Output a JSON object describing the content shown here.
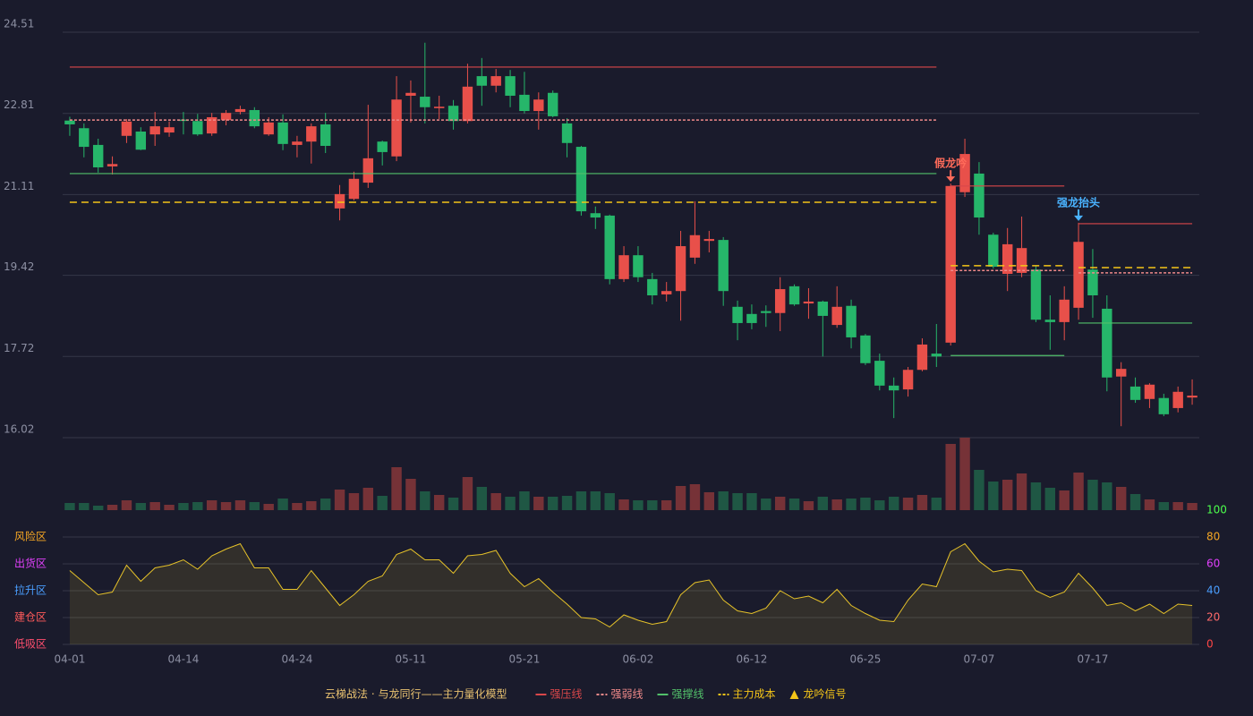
{
  "chart_data": {
    "type": "candlestick",
    "title": "云梯战法 · 与龙同行——主力量化模型",
    "up_color": "#e8504a",
    "down_color": "#26b66a",
    "volume_up_color": "#763237",
    "volume_down_color": "#1f5744",
    "categories": [
      "04-01",
      null,
      null,
      null,
      null,
      null,
      null,
      null,
      "04-14",
      null,
      null,
      null,
      null,
      null,
      null,
      null,
      "04-24",
      null,
      null,
      null,
      null,
      null,
      null,
      null,
      "05-11",
      null,
      null,
      null,
      null,
      null,
      null,
      null,
      "05-21",
      null,
      null,
      null,
      null,
      null,
      null,
      null,
      "06-02",
      null,
      null,
      null,
      null,
      null,
      null,
      null,
      "06-12",
      null,
      null,
      null,
      null,
      null,
      null,
      null,
      "06-25",
      null,
      null,
      null,
      null,
      null,
      null,
      null,
      "07-07",
      null,
      null,
      null,
      null,
      null,
      null,
      null,
      "07-17",
      null,
      null,
      null,
      null,
      null,
      null,
      null
    ],
    "open": [
      22.66,
      22.5,
      22.15,
      21.7,
      22.34,
      22.43,
      22.37,
      22.41,
      22.68,
      22.65,
      22.39,
      22.67,
      22.84,
      22.88,
      22.37,
      22.62,
      22.15,
      22.22,
      22.58,
      20.82,
      21.02,
      21.36,
      22.22,
      21.91,
      23.18,
      23.16,
      22.92,
      22.97,
      22.65,
      23.59,
      23.39,
      23.59,
      23.2,
      22.86,
      23.24,
      22.6,
      22.11,
      20.72,
      20.67,
      19.34,
      19.84,
      19.34,
      19.02,
      19.09,
      19.79,
      20.14,
      20.16,
      18.76,
      18.61,
      18.67,
      18.63,
      19.19,
      18.83,
      18.87,
      18.38,
      18.78,
      18.16,
      17.63,
      17.11,
      17.03,
      17.44,
      17.78,
      18.01,
      21.16,
      21.55,
      20.27,
      19.45,
      19.47,
      19.54,
      18.49,
      18.44,
      18.74,
      19.54,
      18.72,
      17.3,
      17.09,
      16.83,
      16.85,
      16.64,
      16.86
    ],
    "high": [
      22.74,
      22.6,
      22.28,
      21.91,
      22.69,
      22.52,
      22.84,
      22.64,
      22.84,
      22.8,
      22.82,
      22.88,
      22.97,
      22.94,
      22.73,
      22.79,
      22.34,
      22.6,
      22.82,
      21.31,
      21.59,
      22.99,
      22.24,
      23.59,
      23.5,
      24.29,
      23.18,
      23.09,
      23.85,
      23.97,
      23.74,
      23.72,
      23.68,
      23.25,
      23.29,
      22.71,
      22.13,
      20.86,
      20.69,
      20.03,
      20.03,
      19.47,
      19.28,
      20.35,
      20.97,
      20.35,
      20.22,
      18.89,
      18.81,
      18.79,
      19.38,
      19.23,
      19.15,
      18.89,
      19.19,
      18.91,
      18.19,
      17.78,
      17.28,
      17.5,
      18.1,
      18.4,
      21.34,
      22.28,
      21.79,
      20.31,
      20.41,
      20.65,
      19.62,
      19.0,
      19.19,
      20.52,
      19.97,
      19.0,
      17.6,
      17.28,
      17.16,
      16.94,
      17.09,
      17.24
    ],
    "low": [
      22.34,
      21.89,
      21.57,
      21.53,
      22.19,
      22.04,
      22.13,
      22.32,
      22.37,
      22.34,
      22.34,
      22.56,
      22.79,
      22.5,
      22.34,
      22.04,
      21.89,
      21.76,
      21.98,
      20.57,
      20.99,
      21.25,
      21.72,
      21.81,
      22.62,
      22.6,
      22.69,
      22.47,
      22.6,
      22.97,
      23.25,
      22.94,
      22.81,
      22.47,
      22.73,
      21.89,
      20.67,
      20.39,
      19.23,
      19.28,
      19.28,
      18.81,
      18.87,
      18.47,
      19.66,
      19.9,
      18.78,
      18.06,
      18.29,
      18.34,
      18.25,
      18.78,
      18.51,
      17.72,
      18.32,
      17.89,
      17.54,
      17.01,
      16.43,
      16.88,
      17.41,
      17.5,
      17.95,
      21.06,
      20.27,
      19.56,
      19.09,
      19.38,
      18.44,
      17.86,
      18.06,
      18.49,
      18.53,
      16.99,
      16.26,
      16.75,
      16.64,
      16.47,
      16.55,
      16.71
    ],
    "close": [
      22.58,
      22.11,
      21.68,
      21.75,
      22.64,
      22.05,
      22.54,
      22.52,
      22.66,
      22.37,
      22.73,
      22.82,
      22.9,
      22.54,
      22.62,
      22.17,
      22.22,
      22.54,
      22.13,
      21.12,
      21.44,
      21.87,
      22.0,
      23.1,
      23.24,
      22.94,
      22.95,
      22.65,
      23.37,
      23.39,
      23.59,
      23.18,
      22.86,
      23.1,
      22.75,
      22.19,
      20.76,
      20.63,
      19.34,
      19.84,
      19.38,
      19.0,
      19.09,
      20.03,
      20.26,
      20.18,
      19.09,
      18.42,
      18.42,
      18.63,
      19.13,
      18.81,
      18.87,
      18.57,
      18.76,
      18.12,
      17.58,
      17.11,
      17.01,
      17.44,
      17.97,
      17.72,
      21.29,
      21.96,
      20.63,
      19.6,
      20.07,
      19.99,
      18.49,
      18.44,
      18.91,
      20.12,
      19.0,
      17.28,
      17.46,
      16.81,
      17.13,
      16.51,
      16.98,
      16.9
    ],
    "ylim": [
      16.02,
      24.51
    ],
    "yticks": [
      16.02,
      17.72,
      19.42,
      21.11,
      22.81,
      24.51
    ],
    "grid": true,
    "volume": [
      8,
      8,
      5,
      6,
      11,
      8,
      9,
      6,
      8,
      9,
      11,
      9,
      11,
      9,
      7,
      13,
      8,
      10,
      13,
      23,
      19,
      25,
      16,
      48,
      35,
      21,
      17,
      14,
      37,
      26,
      19,
      15,
      21,
      15,
      15,
      16,
      21,
      21,
      19,
      12,
      11,
      11,
      11,
      27,
      29,
      20,
      21,
      19,
      19,
      13,
      15,
      13,
      10,
      15,
      12,
      13,
      14,
      11,
      15,
      14,
      17,
      14,
      74,
      81,
      45,
      32,
      34,
      41,
      31,
      25,
      22,
      42,
      34,
      31,
      26,
      18,
      12,
      9,
      9,
      8
    ],
    "levels": [
      {
        "name": "强压线",
        "color": "#d9474a",
        "dash": false,
        "segments": [
          {
            "start": 0,
            "end": 61,
            "value": 23.78
          },
          {
            "start": 62,
            "end": 70,
            "value": 21.29
          },
          {
            "start": 71,
            "end": 79,
            "value": 20.5
          }
        ]
      },
      {
        "name": "强弱线",
        "color": "#f08a8a",
        "dash": true,
        "segments": [
          {
            "start": 0,
            "end": 61,
            "value": 22.67
          },
          {
            "start": 62,
            "end": 70,
            "value": 19.52
          },
          {
            "start": 71,
            "end": 79,
            "value": 19.47
          }
        ]
      },
      {
        "name": "强撑线",
        "color": "#52c06a",
        "dash": false,
        "segments": [
          {
            "start": 0,
            "end": 61,
            "value": 21.55
          },
          {
            "start": 62,
            "end": 70,
            "value": 17.74
          },
          {
            "start": 71,
            "end": 79,
            "value": 18.42
          }
        ]
      },
      {
        "name": "主力成本",
        "color": "#f5c518",
        "dash": true,
        "segments": [
          {
            "start": 0,
            "end": 61,
            "value": 20.95
          },
          {
            "start": 62,
            "end": 70,
            "value": 19.62
          },
          {
            "start": 71,
            "end": 79,
            "value": 19.58
          }
        ]
      }
    ],
    "signal_name": "龙吟信号",
    "signal_color": "#f5c518",
    "signals": [
      {
        "label": "假龙吟",
        "index": 62,
        "color": "#ff6b5a"
      },
      {
        "label": "强龙抬头",
        "index": 71,
        "color": "#4ab3ff"
      }
    ],
    "indicator": {
      "color": "#e6c229",
      "values": [
        55,
        46,
        37,
        39,
        59,
        47,
        57,
        59,
        63,
        56,
        66,
        71,
        75,
        57,
        57,
        41,
        41,
        55,
        42,
        29,
        37,
        47,
        51,
        67,
        71,
        63,
        63,
        53,
        66,
        67,
        70,
        53,
        43,
        49,
        39,
        30,
        20,
        19,
        13,
        22,
        18,
        15,
        17,
        37,
        46,
        48,
        33,
        25,
        23,
        27,
        40,
        34,
        36,
        31,
        41,
        29,
        23,
        18,
        17,
        33,
        45,
        43,
        69,
        75,
        62,
        54,
        56,
        55,
        40,
        35,
        39,
        53,
        42,
        29,
        31,
        25,
        30,
        23,
        30,
        29
      ],
      "ylim": [
        0,
        100
      ],
      "yticks": [
        0,
        20,
        40,
        60,
        80,
        100
      ],
      "ytick_colors": [
        "#ff4646",
        "#ff6a6a",
        "#4a9eff",
        "#e040fb",
        "#f5a623",
        "#4cff4c"
      ],
      "zones": [
        {
          "value": 80,
          "label": "风险区",
          "color": "#f5a623"
        },
        {
          "value": 60,
          "label": "出货区",
          "color": "#e040fb"
        },
        {
          "value": 40,
          "label": "拉升区",
          "color": "#4a9eff"
        },
        {
          "value": 20,
          "label": "建仓区",
          "color": "#ff5a5a"
        },
        {
          "value": 0,
          "label": "低吸区",
          "color": "#ff4f6e"
        }
      ]
    }
  }
}
